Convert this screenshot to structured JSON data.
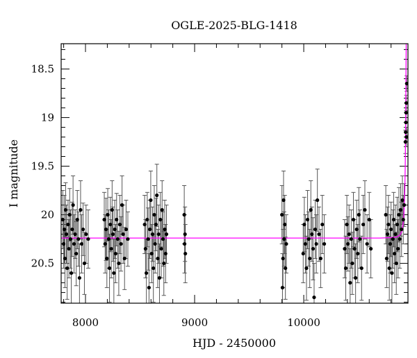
{
  "chart_data": {
    "type": "scatter",
    "title": "OGLE-2025-BLG-1418",
    "xlabel": "HJD - 2450000",
    "ylabel": "I magnitude",
    "xlim": [
      7777,
      10955
    ],
    "ylim": [
      20.91,
      18.24
    ],
    "y_inverted": true,
    "xticks": [
      "8000",
      "9000",
      "10000"
    ],
    "yticks": [
      "18.5",
      "19",
      "19.5",
      "20",
      "20.5"
    ],
    "grid": false,
    "colors": {
      "points": "#000000",
      "errorbars": "#555555",
      "model": "#ff00ff"
    },
    "points_columns": [
      "hjd",
      "mag",
      "err"
    ],
    "points": [
      [
        7792,
        20.05,
        0.3
      ],
      [
        7800,
        20.3,
        0.25
      ],
      [
        7806,
        20.15,
        0.35
      ],
      [
        7812,
        20.45,
        0.3
      ],
      [
        7818,
        19.95,
        0.28
      ],
      [
        7825,
        20.2,
        0.3
      ],
      [
        7832,
        20.55,
        0.32
      ],
      [
        7840,
        20.1,
        0.25
      ],
      [
        7848,
        20.35,
        0.3
      ],
      [
        7855,
        20.0,
        0.27
      ],
      [
        7862,
        20.25,
        0.3
      ],
      [
        7870,
        20.6,
        0.35
      ],
      [
        7878,
        20.15,
        0.28
      ],
      [
        7886,
        19.9,
        0.3
      ],
      [
        7895,
        20.3,
        0.3
      ],
      [
        7905,
        20.2,
        0.25
      ],
      [
        7915,
        20.4,
        0.33
      ],
      [
        7925,
        20.05,
        0.3
      ],
      [
        7935,
        20.25,
        0.28
      ],
      [
        7945,
        20.65,
        0.35
      ],
      [
        7955,
        19.95,
        0.3
      ],
      [
        7965,
        20.3,
        0.3
      ],
      [
        7978,
        20.15,
        0.27
      ],
      [
        7990,
        20.5,
        0.32
      ],
      [
        8005,
        20.2,
        0.3
      ],
      [
        8025,
        20.25,
        0.3
      ],
      [
        8172,
        20.05,
        0.28
      ],
      [
        8180,
        20.3,
        0.3
      ],
      [
        8188,
        20.15,
        0.32
      ],
      [
        8196,
        20.45,
        0.3
      ],
      [
        8204,
        20.0,
        0.27
      ],
      [
        8212,
        20.25,
        0.3
      ],
      [
        8220,
        20.55,
        0.35
      ],
      [
        8228,
        20.1,
        0.28
      ],
      [
        8236,
        20.35,
        0.3
      ],
      [
        8244,
        19.95,
        0.3
      ],
      [
        8252,
        20.2,
        0.28
      ],
      [
        8260,
        20.6,
        0.35
      ],
      [
        8268,
        20.15,
        0.3
      ],
      [
        8276,
        20.4,
        0.3
      ],
      [
        8285,
        20.05,
        0.27
      ],
      [
        8295,
        20.25,
        0.3
      ],
      [
        8305,
        20.5,
        0.33
      ],
      [
        8315,
        20.1,
        0.3
      ],
      [
        8325,
        20.3,
        0.28
      ],
      [
        8335,
        19.9,
        0.3
      ],
      [
        8345,
        20.2,
        0.3
      ],
      [
        8358,
        20.45,
        0.32
      ],
      [
        8372,
        20.15,
        0.3
      ],
      [
        8388,
        20.25,
        0.28
      ],
      [
        8542,
        20.1,
        0.3
      ],
      [
        8550,
        20.35,
        0.3
      ],
      [
        8558,
        20.6,
        0.35
      ],
      [
        8566,
        20.05,
        0.28
      ],
      [
        8574,
        20.25,
        0.32
      ],
      [
        8582,
        20.75,
        0.35
      ],
      [
        8590,
        20.15,
        0.3
      ],
      [
        8598,
        19.85,
        0.3
      ],
      [
        8606,
        20.4,
        0.3
      ],
      [
        8614,
        20.2,
        0.28
      ],
      [
        8622,
        20.55,
        0.35
      ],
      [
        8630,
        20.0,
        0.3
      ],
      [
        8638,
        20.3,
        0.3
      ],
      [
        8646,
        20.1,
        0.27
      ],
      [
        8654,
        19.8,
        0.32
      ],
      [
        8662,
        20.45,
        0.3
      ],
      [
        8670,
        20.2,
        0.3
      ],
      [
        8678,
        20.65,
        0.35
      ],
      [
        8686,
        20.05,
        0.28
      ],
      [
        8694,
        20.35,
        0.3
      ],
      [
        8702,
        19.95,
        0.3
      ],
      [
        8710,
        20.25,
        0.28
      ],
      [
        8718,
        20.5,
        0.33
      ],
      [
        8726,
        20.15,
        0.3
      ],
      [
        8734,
        20.4,
        0.3
      ],
      [
        8742,
        20.2,
        0.3
      ],
      [
        8905,
        20.0,
        0.3
      ],
      [
        8908,
        20.3,
        0.3
      ],
      [
        8912,
        20.2,
        0.28
      ],
      [
        8915,
        20.4,
        0.3
      ],
      [
        9800,
        20.0,
        0.3
      ],
      [
        9805,
        20.75,
        0.35
      ],
      [
        9810,
        20.45,
        0.3
      ],
      [
        9815,
        19.85,
        0.3
      ],
      [
        9820,
        20.25,
        0.28
      ],
      [
        9826,
        20.1,
        0.3
      ],
      [
        9832,
        20.55,
        0.32
      ],
      [
        9840,
        20.3,
        0.3
      ],
      [
        9995,
        20.4,
        0.3
      ],
      [
        10005,
        20.1,
        0.28
      ],
      [
        10015,
        20.3,
        0.3
      ],
      [
        10025,
        20.55,
        0.33
      ],
      [
        10035,
        20.05,
        0.3
      ],
      [
        10045,
        20.25,
        0.28
      ],
      [
        10055,
        20.45,
        0.3
      ],
      [
        10065,
        19.95,
        0.3
      ],
      [
        10075,
        20.2,
        0.28
      ],
      [
        10085,
        20.35,
        0.32
      ],
      [
        10095,
        20.85,
        0.35
      ],
      [
        10105,
        20.15,
        0.3
      ],
      [
        10115,
        20.3,
        0.3
      ],
      [
        10125,
        19.85,
        0.32
      ],
      [
        10140,
        20.2,
        0.28
      ],
      [
        10155,
        20.45,
        0.3
      ],
      [
        10170,
        20.1,
        0.3
      ],
      [
        10188,
        20.3,
        0.3
      ],
      [
        10375,
        20.35,
        0.3
      ],
      [
        10385,
        20.55,
        0.33
      ],
      [
        10395,
        20.1,
        0.3
      ],
      [
        10405,
        20.3,
        0.28
      ],
      [
        10415,
        20.2,
        0.3
      ],
      [
        10425,
        20.7,
        0.35
      ],
      [
        10435,
        20.25,
        0.3
      ],
      [
        10445,
        20.5,
        0.32
      ],
      [
        10455,
        20.05,
        0.28
      ],
      [
        10465,
        20.35,
        0.3
      ],
      [
        10475,
        20.65,
        0.35
      ],
      [
        10485,
        20.15,
        0.3
      ],
      [
        10495,
        20.4,
        0.3
      ],
      [
        10505,
        20.0,
        0.28
      ],
      [
        10515,
        20.25,
        0.3
      ],
      [
        10530,
        20.55,
        0.33
      ],
      [
        10545,
        20.1,
        0.3
      ],
      [
        10560,
        19.95,
        0.3
      ],
      [
        10580,
        20.3,
        0.3
      ],
      [
        10600,
        20.05,
        0.28
      ],
      [
        10615,
        20.35,
        0.3
      ],
      [
        10752,
        20.0,
        0.3
      ],
      [
        10760,
        20.45,
        0.3
      ],
      [
        10768,
        20.2,
        0.28
      ],
      [
        10776,
        20.1,
        0.3
      ],
      [
        10784,
        20.55,
        0.33
      ],
      [
        10792,
        20.3,
        0.3
      ],
      [
        10800,
        20.15,
        0.28
      ],
      [
        10808,
        20.6,
        0.35
      ],
      [
        10816,
        20.25,
        0.3
      ],
      [
        10824,
        20.05,
        0.28
      ],
      [
        10832,
        20.4,
        0.3
      ],
      [
        10840,
        20.2,
        0.3
      ],
      [
        10848,
        20.5,
        0.32
      ],
      [
        10856,
        20.1,
        0.28
      ],
      [
        10864,
        20.35,
        0.3
      ],
      [
        10872,
        20.0,
        0.28
      ],
      [
        10880,
        20.25,
        0.3
      ],
      [
        10888,
        19.95,
        0.27
      ],
      [
        10896,
        20.15,
        0.28
      ],
      [
        10904,
        19.85,
        0.25
      ],
      [
        10912,
        20.05,
        0.25
      ],
      [
        10920,
        19.9,
        0.22
      ],
      [
        10932,
        19.25,
        0.12
      ],
      [
        10934,
        19.15,
        0.1
      ],
      [
        10936,
        19.05,
        0.1
      ],
      [
        10938,
        18.95,
        0.1
      ],
      [
        10940,
        18.85,
        0.08
      ],
      [
        10942,
        19.2,
        0.1
      ],
      [
        10944,
        18.65,
        0.08
      ]
    ],
    "model": [
      [
        7777,
        20.24
      ],
      [
        10700,
        20.24
      ],
      [
        10800,
        20.235
      ],
      [
        10850,
        20.23
      ],
      [
        10880,
        20.21
      ],
      [
        10900,
        20.17
      ],
      [
        10912,
        20.08
      ],
      [
        10920,
        19.95
      ],
      [
        10926,
        19.75
      ],
      [
        10930,
        19.5
      ],
      [
        10933,
        19.2
      ],
      [
        10935,
        18.9
      ],
      [
        10937,
        18.5
      ],
      [
        10939,
        18.24
      ]
    ]
  }
}
